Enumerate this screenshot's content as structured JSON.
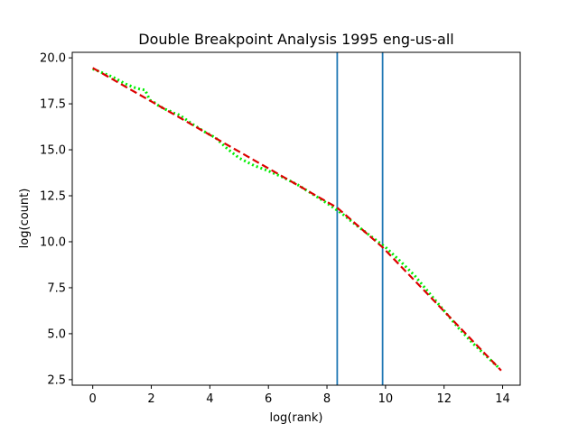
{
  "chart_data": {
    "type": "line",
    "title": "Double Breakpoint Analysis 1995 eng-us-all",
    "xlabel": "log(rank)",
    "ylabel": "log(count)",
    "xlim": [
      -0.7,
      14.6
    ],
    "ylim": [
      2.2,
      20.3
    ],
    "xticks": [
      0,
      2,
      4,
      6,
      8,
      10,
      12,
      14
    ],
    "xtick_labels": [
      "0",
      "2",
      "4",
      "6",
      "8",
      "10",
      "12",
      "14"
    ],
    "yticks": [
      2.5,
      5.0,
      7.5,
      10.0,
      12.5,
      15.0,
      17.5,
      20.0
    ],
    "ytick_labels": [
      "2.5",
      "5.0",
      "7.5",
      "10.0",
      "12.5",
      "15.0",
      "17.5",
      "20.0"
    ],
    "grid": false,
    "series": [
      {
        "style": "data",
        "color": "#00ee00",
        "x": [
          0.0,
          0.69,
          1.1,
          1.39,
          1.61,
          1.79,
          1.95,
          2.08,
          2.2,
          2.3,
          2.48,
          2.64,
          2.77,
          2.89,
          3.0,
          3.4,
          3.8,
          4.2,
          4.6,
          5.0,
          5.5,
          6.0,
          6.5,
          7.0,
          7.5,
          8.0,
          8.5,
          9.0,
          9.5,
          10.0,
          10.5,
          11.0,
          11.5,
          12.0,
          12.5,
          13.0,
          13.5,
          13.9
        ],
        "y": [
          19.4,
          18.95,
          18.6,
          18.4,
          18.3,
          18.25,
          17.7,
          17.6,
          17.45,
          17.35,
          17.2,
          17.1,
          17.0,
          16.95,
          16.85,
          16.4,
          16.0,
          15.65,
          15.05,
          14.55,
          14.15,
          13.85,
          13.5,
          13.1,
          12.6,
          12.1,
          11.55,
          10.9,
          10.3,
          9.7,
          8.95,
          8.15,
          7.2,
          6.25,
          5.3,
          4.45,
          3.7,
          3.1
        ]
      },
      {
        "style": "fit",
        "color": "#dd0000",
        "x": [
          0.0,
          8.35,
          9.9,
          13.95
        ],
        "y": [
          19.45,
          11.85,
          9.7,
          3.0
        ]
      }
    ],
    "vlines": {
      "color": "#1f77b4",
      "x": [
        8.35,
        9.9
      ]
    }
  }
}
